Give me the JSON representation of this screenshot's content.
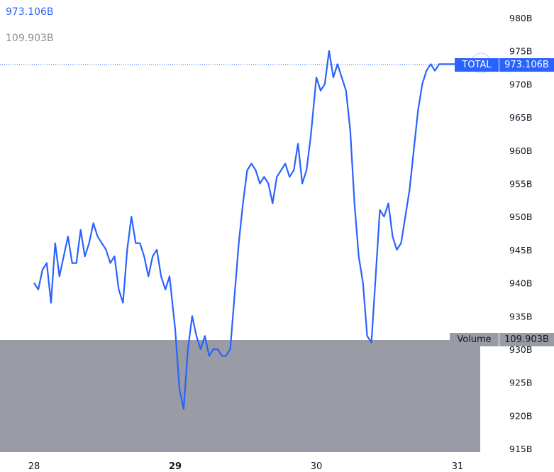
{
  "header": {
    "total_value": "973.106B",
    "volume_value": "109.903B"
  },
  "badges": {
    "total_label": "TOTAL",
    "total_value": "973.106B",
    "volume_label": "Volume",
    "volume_value": "109.903B"
  },
  "colors": {
    "line": "#2962ff",
    "volume": "#999ca5",
    "badge": "#2962ff",
    "axis_text": "#131722"
  },
  "chart_data": {
    "type": "line",
    "title": "",
    "series": [
      {
        "name": "TOTAL",
        "x": [
          0.0,
          0.03,
          0.06,
          0.09,
          0.12,
          0.15,
          0.18,
          0.21,
          0.24,
          0.27,
          0.3,
          0.33,
          0.36,
          0.39,
          0.42,
          0.45,
          0.48,
          0.51,
          0.54,
          0.57,
          0.6,
          0.63,
          0.66,
          0.69,
          0.72,
          0.75,
          0.78,
          0.81,
          0.84,
          0.87,
          0.9,
          0.93,
          0.96,
          1.0,
          1.03,
          1.06,
          1.09,
          1.12,
          1.15,
          1.18,
          1.21,
          1.24,
          1.27,
          1.3,
          1.33,
          1.36,
          1.39,
          1.42,
          1.45,
          1.48,
          1.51,
          1.54,
          1.57,
          1.6,
          1.63,
          1.66,
          1.69,
          1.72,
          1.75,
          1.78,
          1.81,
          1.84,
          1.87,
          1.9,
          1.93,
          1.96,
          2.0,
          2.03,
          2.06,
          2.09,
          2.12,
          2.15,
          2.18,
          2.21,
          2.24,
          2.27,
          2.3,
          2.33,
          2.36,
          2.39,
          2.42,
          2.45,
          2.48,
          2.51,
          2.54,
          2.57,
          2.6,
          2.63,
          2.66,
          2.69,
          2.72,
          2.75,
          2.78,
          2.81,
          2.84,
          2.87,
          2.9,
          2.93,
          2.96,
          3.0,
          3.03,
          3.06,
          3.09,
          3.12,
          3.15,
          3.18
        ],
        "values": [
          940,
          939,
          942,
          943,
          937,
          946,
          941,
          944,
          947,
          943,
          943,
          948,
          944,
          946,
          949,
          947,
          946,
          945,
          943,
          944,
          939,
          937,
          945,
          950,
          946,
          946,
          944,
          941,
          944,
          945,
          941,
          939,
          941,
          933,
          924,
          921,
          930,
          935,
          932,
          930,
          932,
          929,
          930,
          930,
          929,
          929,
          930,
          938,
          946,
          952,
          957,
          958,
          957,
          955,
          956,
          955,
          952,
          956,
          957,
          958,
          956,
          957,
          961,
          955,
          957,
          962,
          971,
          969,
          970,
          975,
          971,
          973,
          971,
          969,
          963,
          952,
          944,
          940,
          932,
          931,
          941,
          951,
          950,
          952,
          947,
          945,
          946,
          950,
          954,
          960,
          966,
          970,
          972,
          973,
          972,
          973,
          973,
          973,
          973,
          973,
          973,
          973,
          973,
          973,
          973,
          973
        ]
      }
    ],
    "volume": {
      "name": "Volume",
      "value": "109.903B"
    },
    "x_ticks": [
      {
        "label": "28",
        "x": 0.0,
        "bold": false
      },
      {
        "label": "29",
        "x": 1.0,
        "bold": true
      },
      {
        "label": "30",
        "x": 2.0,
        "bold": false
      },
      {
        "label": "31",
        "x": 3.0,
        "bold": false
      }
    ],
    "y_ticks": [
      "980B",
      "975B",
      "970B",
      "965B",
      "960B",
      "955B",
      "950B",
      "945B",
      "940B",
      "935B",
      "930B",
      "925B",
      "920B",
      "915B"
    ],
    "ylim": [
      915,
      980
    ],
    "last_value": 973.106,
    "grid": false
  }
}
